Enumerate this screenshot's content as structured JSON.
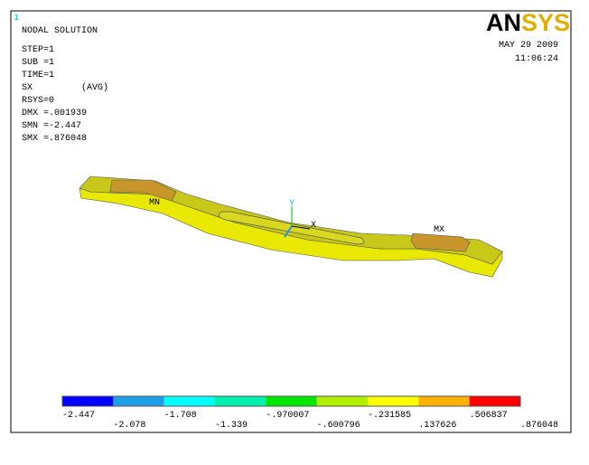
{
  "window_number": "1",
  "header": {
    "title": "NODAL SOLUTION",
    "lines": [
      "STEP=1",
      "SUB =1",
      "TIME=1"
    ],
    "result": {
      "label": "SX",
      "qualifier": "(AVG)"
    },
    "stats": [
      "RSYS=0",
      "DMX =.001939",
      "SMN =-2.447",
      "SMX =.876048"
    ]
  },
  "logo": [
    "AN",
    "SYS"
  ],
  "date": "MAY 29 2009",
  "time": "11:06:24",
  "model_labels": {
    "min": "MN",
    "max": "MX"
  },
  "triad": {
    "x": "X",
    "y": "Y"
  },
  "legend": {
    "colors": [
      "#0000ff",
      "#1e9ee8",
      "#00ffff",
      "#00f0b0",
      "#00e600",
      "#b0f000",
      "#ffff00",
      "#ffb000",
      "#ff0000"
    ],
    "labels": [
      "-2.447",
      "-2.078",
      "-1.708",
      "-1.339",
      "-.970007",
      "-.600796",
      "-.231585",
      ".137626",
      ".506837",
      ".876048"
    ]
  }
}
